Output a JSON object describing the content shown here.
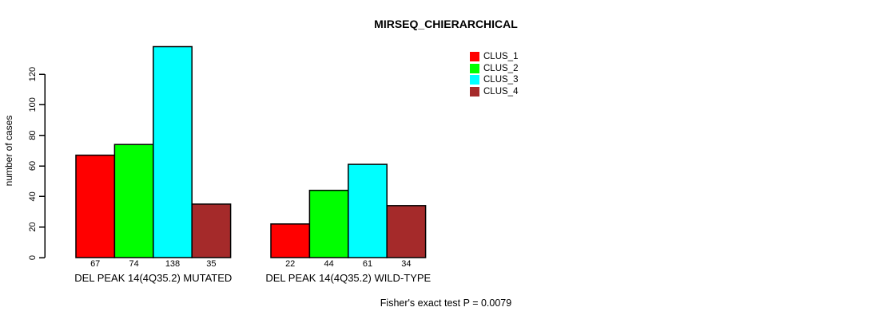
{
  "chart_data": {
    "type": "bar",
    "title": "MIRSEQ_CHIERARCHICAL",
    "ylabel": "number of cases",
    "xlabel": "",
    "yticks": [
      0,
      20,
      40,
      60,
      80,
      100,
      120
    ],
    "ylim": [
      0,
      138
    ],
    "grid": false,
    "legend_position": "top-right-outside",
    "categories": [
      "DEL PEAK 14(4Q35.2) MUTATED",
      "DEL PEAK 14(4Q35.2) WILD-TYPE"
    ],
    "series": [
      {
        "name": "CLUS_1",
        "color": "#ff0000",
        "values": [
          67,
          22
        ]
      },
      {
        "name": "CLUS_2",
        "color": "#00ff00",
        "values": [
          74,
          44
        ]
      },
      {
        "name": "CLUS_3",
        "color": "#00ffff",
        "values": [
          138,
          61
        ]
      },
      {
        "name": "CLUS_4",
        "color": "#a52a2a",
        "values": [
          35,
          34
        ]
      }
    ],
    "bar_value_labels": [
      [
        67,
        74,
        138,
        35
      ],
      [
        22,
        44,
        61,
        34
      ]
    ],
    "annotation": "Fisher's exact test P = 0.0079",
    "axis_color": "#000000",
    "bar_border_color": "#000000"
  }
}
